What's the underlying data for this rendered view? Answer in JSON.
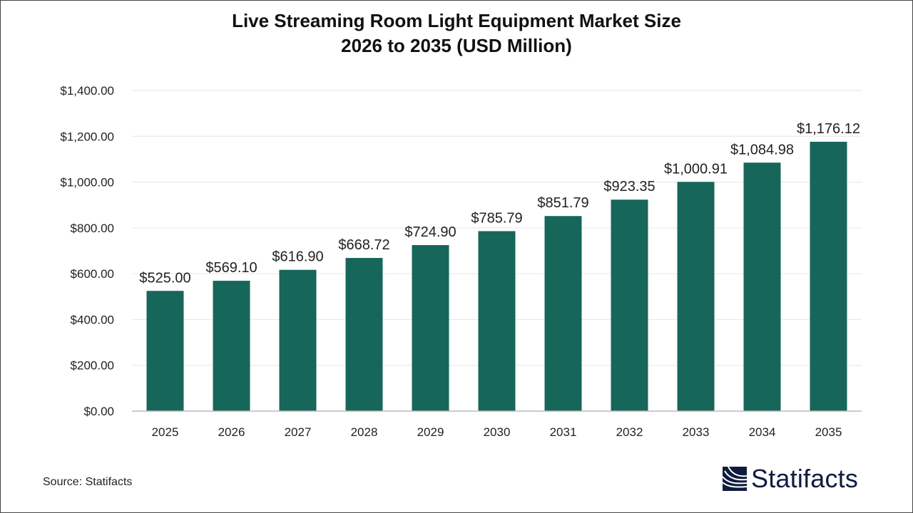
{
  "chart_data": {
    "type": "bar",
    "title": "Live Streaming Room Light Equipment Market Size",
    "subtitle": "2026 to 2035 (USD Million)",
    "xlabel": "",
    "ylabel": "",
    "categories": [
      "2025",
      "2026",
      "2027",
      "2028",
      "2029",
      "2030",
      "2031",
      "2032",
      "2033",
      "2034",
      "2035"
    ],
    "values": [
      525.0,
      569.1,
      616.9,
      668.72,
      724.9,
      785.79,
      851.79,
      923.35,
      1000.91,
      1084.98,
      1176.12
    ],
    "data_labels": [
      "$525.00",
      "$569.10",
      "$616.90",
      "$668.72",
      "$724.90",
      "$785.79",
      "$851.79",
      "$923.35",
      "$1,000.91",
      "$1,084.98",
      "$1,176.12"
    ],
    "ylim": [
      0,
      1400
    ],
    "yticks": [
      0,
      200,
      400,
      600,
      800,
      1000,
      1200,
      1400
    ],
    "ytick_labels": [
      "$0.00",
      "$200.00",
      "$400.00",
      "$600.00",
      "$800.00",
      "$1,000.00",
      "$1,200.00",
      "$1,400.00"
    ],
    "grid": true,
    "bar_color": "#17665a"
  },
  "source": "Source: Statifacts",
  "logo": {
    "text": "Statifacts",
    "color": "#0f1c3f"
  }
}
